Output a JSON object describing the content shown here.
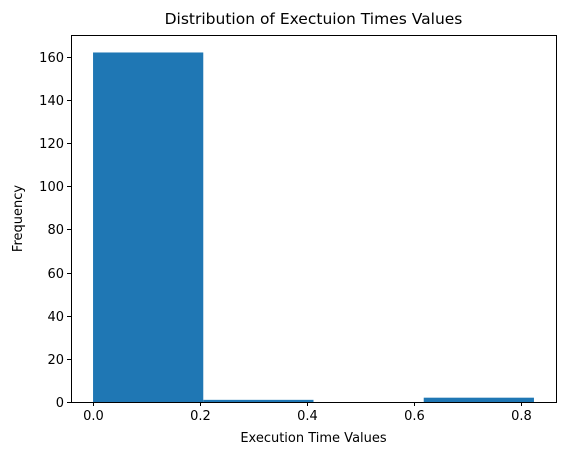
{
  "chart_data": {
    "type": "histogram",
    "title": "Distribution of Exectuion Times Values",
    "xlabel": "Execution Time Values",
    "ylabel": "Frequency",
    "bin_edges": [
      0.0,
      0.206,
      0.412,
      0.618,
      0.824
    ],
    "bins": [
      {
        "start": 0.0,
        "end": 0.206,
        "count": 162
      },
      {
        "start": 0.206,
        "end": 0.412,
        "count": 1
      },
      {
        "start": 0.412,
        "end": 0.618,
        "count": 0
      },
      {
        "start": 0.618,
        "end": 0.824,
        "count": 2
      }
    ],
    "xlim": [
      -0.0412,
      0.8652
    ],
    "ylim": [
      0,
      170.1
    ],
    "xticks": [
      {
        "value": 0.0,
        "label": "0.0"
      },
      {
        "value": 0.2,
        "label": "0.2"
      },
      {
        "value": 0.4,
        "label": "0.4"
      },
      {
        "value": 0.6,
        "label": "0.6"
      },
      {
        "value": 0.8,
        "label": "0.8"
      }
    ],
    "yticks": [
      {
        "value": 0,
        "label": "0"
      },
      {
        "value": 20,
        "label": "20"
      },
      {
        "value": 40,
        "label": "40"
      },
      {
        "value": 60,
        "label": "60"
      },
      {
        "value": 80,
        "label": "80"
      },
      {
        "value": 100,
        "label": "100"
      },
      {
        "value": 120,
        "label": "120"
      },
      {
        "value": 140,
        "label": "140"
      },
      {
        "value": 160,
        "label": "160"
      }
    ],
    "bar_color": "#1f77b4",
    "grid": false,
    "legend": "none"
  }
}
